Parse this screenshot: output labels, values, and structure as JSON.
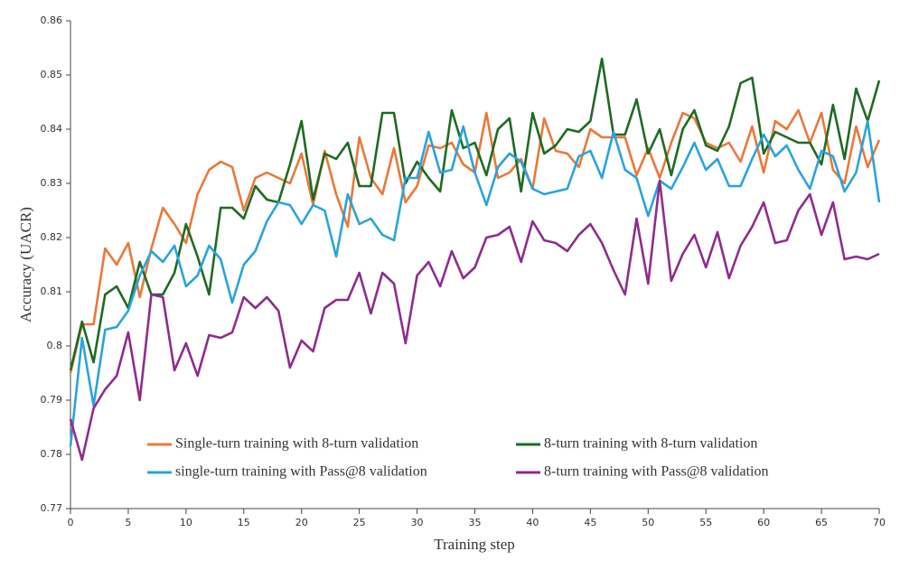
{
  "chart_data": {
    "type": "line",
    "xlabel": "Training  step",
    "ylabel": "Accuracy (UACR)",
    "x": [
      0,
      1,
      2,
      3,
      4,
      5,
      6,
      7,
      8,
      9,
      10,
      11,
      12,
      13,
      14,
      15,
      16,
      17,
      18,
      19,
      20,
      21,
      22,
      23,
      24,
      25,
      26,
      27,
      28,
      29,
      30,
      31,
      32,
      33,
      34,
      35,
      36,
      37,
      38,
      39,
      40,
      41,
      42,
      43,
      44,
      45,
      46,
      47,
      48,
      49,
      50,
      51,
      52,
      53,
      54,
      55,
      56,
      57,
      58,
      59,
      60,
      61,
      62,
      63,
      64,
      65,
      66,
      67,
      68,
      69,
      70
    ],
    "xlim": [
      0,
      70
    ],
    "xticks": [
      0,
      5,
      10,
      15,
      20,
      25,
      30,
      35,
      40,
      45,
      50,
      55,
      60,
      65,
      70
    ],
    "ylim": [
      0.77,
      0.86
    ],
    "yticks": [
      0.77,
      0.78,
      0.79,
      0.8,
      0.81,
      0.82,
      0.83,
      0.84,
      0.85,
      0.86
    ],
    "series": [
      {
        "name": "Single-turn training with 8-turn validation",
        "color": "#e8793a",
        "values": [
          0.795,
          0.804,
          0.804,
          0.818,
          0.815,
          0.819,
          0.809,
          0.818,
          0.8255,
          0.8225,
          0.819,
          0.828,
          0.8325,
          0.834,
          0.833,
          0.825,
          0.831,
          0.832,
          0.831,
          0.83,
          0.8355,
          0.826,
          0.836,
          0.828,
          0.822,
          0.8385,
          0.831,
          0.828,
          0.8365,
          0.8265,
          0.8295,
          0.837,
          0.8365,
          0.8375,
          0.8335,
          0.832,
          0.843,
          0.831,
          0.832,
          0.8345,
          0.829,
          0.842,
          0.836,
          0.8355,
          0.833,
          0.84,
          0.8385,
          0.8385,
          0.8385,
          0.8315,
          0.8365,
          0.831,
          0.8375,
          0.843,
          0.842,
          0.8375,
          0.8365,
          0.8375,
          0.834,
          0.8405,
          0.832,
          0.8415,
          0.84,
          0.8435,
          0.8375,
          0.843,
          0.8325,
          0.83,
          0.8405,
          0.833,
          0.838
        ]
      },
      {
        "name": "8-turn training with 8-turn validation",
        "color": "#1e6b22",
        "values": [
          0.7955,
          0.8045,
          0.797,
          0.8095,
          0.811,
          0.807,
          0.8155,
          0.8095,
          0.8095,
          0.8135,
          0.8225,
          0.8165,
          0.8095,
          0.8255,
          0.8255,
          0.8235,
          0.8295,
          0.827,
          0.8265,
          0.8335,
          0.8415,
          0.827,
          0.8355,
          0.8345,
          0.8375,
          0.8295,
          0.8295,
          0.843,
          0.843,
          0.83,
          0.834,
          0.831,
          0.8285,
          0.8435,
          0.8365,
          0.8375,
          0.8315,
          0.84,
          0.842,
          0.8285,
          0.843,
          0.8355,
          0.837,
          0.84,
          0.8395,
          0.8415,
          0.853,
          0.839,
          0.839,
          0.8455,
          0.8355,
          0.84,
          0.8315,
          0.84,
          0.8435,
          0.837,
          0.836,
          0.8405,
          0.8485,
          0.8495,
          0.8355,
          0.8395,
          0.8385,
          0.8375,
          0.8375,
          0.8335,
          0.8445,
          0.8345,
          0.8475,
          0.8415,
          0.849
        ]
      },
      {
        "name": "single-turn training with Pass@8 validation",
        "color": "#2aa3dc",
        "values": [
          0.7815,
          0.8015,
          0.789,
          0.803,
          0.8035,
          0.8065,
          0.813,
          0.8175,
          0.8155,
          0.8185,
          0.811,
          0.813,
          0.8185,
          0.816,
          0.808,
          0.815,
          0.8175,
          0.823,
          0.8265,
          0.826,
          0.8225,
          0.826,
          0.825,
          0.8165,
          0.828,
          0.8225,
          0.8235,
          0.8205,
          0.8195,
          0.831,
          0.831,
          0.8395,
          0.832,
          0.8325,
          0.8405,
          0.832,
          0.826,
          0.833,
          0.8355,
          0.834,
          0.829,
          0.828,
          0.8285,
          0.829,
          0.835,
          0.836,
          0.831,
          0.8395,
          0.8325,
          0.831,
          0.824,
          0.8305,
          0.829,
          0.833,
          0.8375,
          0.8325,
          0.8345,
          0.8295,
          0.8295,
          0.8345,
          0.839,
          0.835,
          0.837,
          0.8325,
          0.829,
          0.836,
          0.835,
          0.8285,
          0.832,
          0.8415,
          0.8265
        ]
      },
      {
        "name": "8-turn training with Pass@8 validation",
        "color": "#8e2c8e",
        "values": [
          0.7865,
          0.779,
          0.7885,
          0.792,
          0.7945,
          0.8025,
          0.79,
          0.8095,
          0.809,
          0.7955,
          0.8005,
          0.7945,
          0.802,
          0.8015,
          0.8025,
          0.809,
          0.807,
          0.809,
          0.8065,
          0.796,
          0.801,
          0.799,
          0.807,
          0.8085,
          0.8085,
          0.8135,
          0.806,
          0.8135,
          0.8115,
          0.8005,
          0.813,
          0.8155,
          0.811,
          0.8175,
          0.8125,
          0.8145,
          0.82,
          0.8205,
          0.822,
          0.8155,
          0.823,
          0.8195,
          0.819,
          0.8175,
          0.8205,
          0.8225,
          0.819,
          0.814,
          0.8095,
          0.8235,
          0.8115,
          0.8305,
          0.812,
          0.817,
          0.8205,
          0.8145,
          0.821,
          0.8125,
          0.8185,
          0.822,
          0.8265,
          0.819,
          0.8195,
          0.825,
          0.828,
          0.8205,
          0.8265,
          0.816,
          0.8165,
          0.816,
          0.817
        ]
      }
    ]
  }
}
